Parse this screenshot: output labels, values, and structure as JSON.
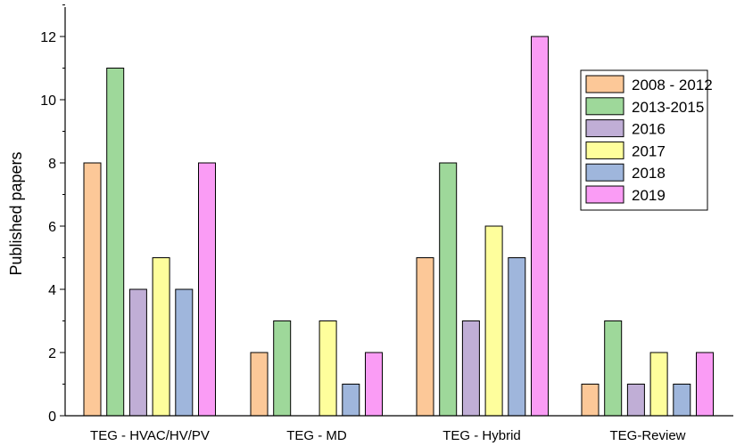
{
  "chart_data": {
    "type": "bar",
    "title": "",
    "xlabel": "",
    "ylabel": "Published papers",
    "ylim": [
      0,
      13
    ],
    "yticks": [
      0,
      2,
      4,
      6,
      8,
      10,
      12
    ],
    "grid": false,
    "legend_position": "top-right",
    "categories": [
      "TEG - HVAC/HV/PV",
      "TEG - MD",
      "TEG - Hybrid",
      "TEG-Review"
    ],
    "series": [
      {
        "name": "2008 - 2012",
        "color": "#FCC898",
        "values": [
          8,
          2,
          5,
          1
        ]
      },
      {
        "name": "2013-2015",
        "color": "#9ED89A",
        "values": [
          11,
          3,
          8,
          3
        ]
      },
      {
        "name": "2016",
        "color": "#C0AED6",
        "values": [
          4,
          0,
          3,
          1
        ]
      },
      {
        "name": "2017",
        "color": "#FEFE9C",
        "values": [
          5,
          3,
          6,
          2
        ]
      },
      {
        "name": "2018",
        "color": "#9FB6DC",
        "values": [
          4,
          1,
          5,
          1
        ]
      },
      {
        "name": "2019",
        "color": "#FA9CF5",
        "values": [
          8,
          2,
          12,
          2
        ]
      }
    ]
  }
}
